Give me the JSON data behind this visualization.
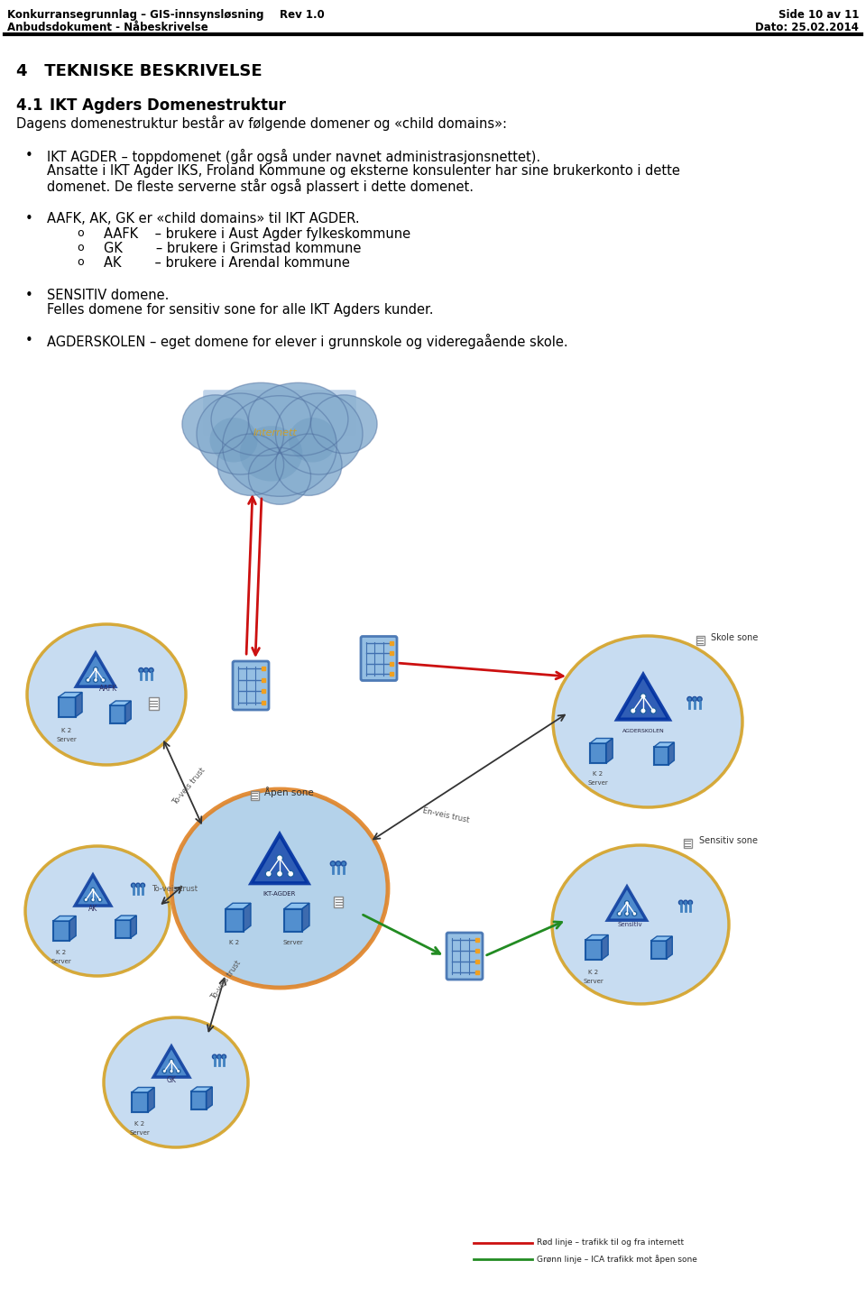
{
  "header_left1": "Konkurransegrunnlag – GIS-innsynsløsning",
  "header_center1": "Rev 1.0",
  "header_left2": "Anbudsdokument - Nåbeskrivelse",
  "header_right2": "Side 10 av 11",
  "header_right3": "Dato: 25.02.2014",
  "section_title": "4   TEKNISKE BESKRIVELSE",
  "subsection_num": "4.1",
  "subsection_title": "IKT Agders Domenestruktur",
  "intro_text": "Dagens domenestruktur består av følgende domener og «child domains»:",
  "bullet1_line1": "IKT AGDER – toppdomenet (går også under navnet administrasjonsnettet).",
  "bullet1_line2": "Ansatte i IKT Agder IKS, Froland Kommune og eksterne konsulenter har sine brukerkonto i dette",
  "bullet1_line3": "domenet. De fleste serverne står også plassert i dette domenet.",
  "bullet2_line1": "AAFK, AK, GK er «child domains» til IKT AGDER.",
  "sub1": "AAFK    – brukere i Aust Agder fylkeskommune",
  "sub2": "GK        – brukere i Grimstad kommune",
  "sub3": "AK        – brukere i Arendal kommune",
  "bullet3_line1": "SENSITIV domene.",
  "bullet3_line2": "Felles domene for sensitiv sone for alle IKT Agders kunder.",
  "bullet4_line1": "AGDERSKOLEN – eget domene for elever i grunnskole og videregaående skole.",
  "legend1": "Rød linje – trafikk til og fra internett",
  "legend2": "Grønn linje – ICA trafikk mot åpen sone",
  "bg_color": "#ffffff",
  "text_color": "#000000"
}
